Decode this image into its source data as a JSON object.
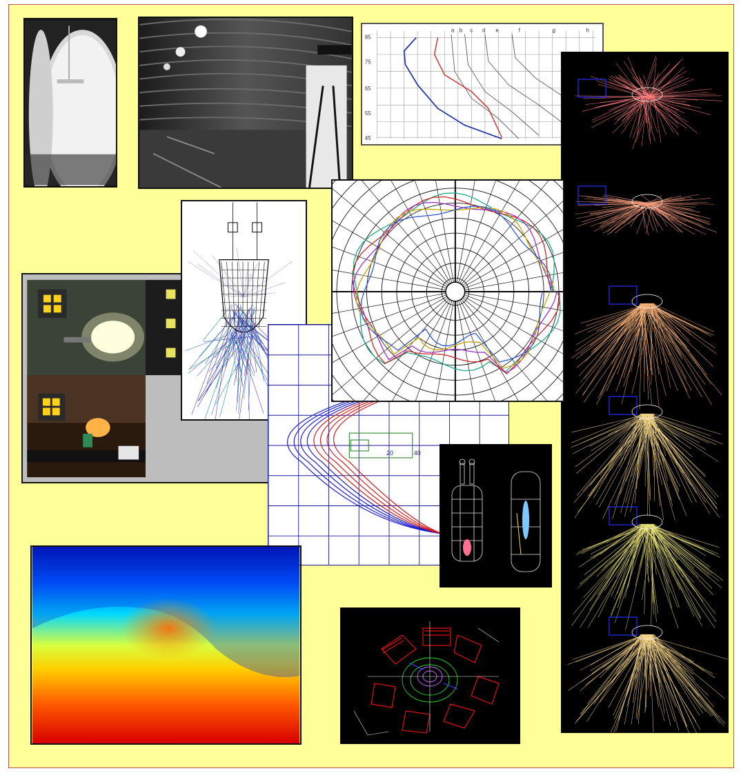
{
  "collage": {
    "description_panels": [
      "integrating-sphere-photo",
      "light-tunnel-photo",
      "spectral-curves-chart",
      "ray-trace-column",
      "lamp-measurement-photos",
      "luminaire-ray-diagram",
      "polar-intensity-diagram",
      "parabolic-curves-plot",
      "lamp-wireframe-models",
      "heatmap-distribution",
      "wireframe-fixture-3d"
    ],
    "spectral_chart": {
      "column_letters": [
        "a",
        "b",
        "c",
        "d",
        "e",
        "f",
        "g",
        "h"
      ],
      "row_labels": [
        "85",
        "75",
        "65",
        "55",
        "45"
      ],
      "colors": {
        "blue": "#2233aa",
        "red": "#cc3333"
      }
    },
    "parabolic_plot": {
      "tick_labels": [
        "20",
        "40"
      ],
      "colors": {
        "blue": "#1b1bd0",
        "red": "#d01b1b",
        "grid": "#1a1a99"
      }
    },
    "colors": {
      "background": "#ffff99",
      "border": "#c0504d",
      "dark_panel": "#000000"
    }
  }
}
